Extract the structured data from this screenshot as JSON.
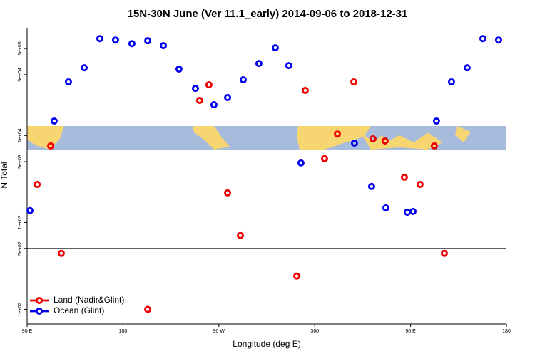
{
  "chart_data": {
    "type": "scatter",
    "title": "15N-30N June (Ver 11.1_early)   2014-09-06 to 2018-12-31",
    "x_label": "Longitude (deg E)",
    "y_label": "N Total",
    "log_y": true,
    "xlim": [
      90,
      540
    ],
    "ylim": [
      68,
      170000
    ],
    "xticks": [
      {
        "value": 90,
        "label": "90 E"
      },
      180,
      {
        "value": 270,
        "label": "90 W"
      },
      360,
      {
        "value": 450,
        "label": "90 E"
      },
      {
        "value": 540,
        "label": "180"
      }
    ],
    "yticks": [
      {
        "value": 100,
        "label": "1e+02"
      },
      {
        "value": 500,
        "label": "5e+02"
      },
      {
        "value": 1000,
        "label": "1e+03"
      },
      {
        "value": 5000,
        "label": "5e+03"
      },
      {
        "value": 10000,
        "label": "1e+04"
      },
      {
        "value": 50000,
        "label": "5e+04"
      },
      {
        "value": 100000,
        "label": "1e+05"
      }
    ],
    "reference_line": 500,
    "legend": "bottom-left",
    "series": [
      {
        "name": "Land (Nadir&Glint)",
        "color": "#ee0000",
        "x": [
          99.4,
          112.1,
          122.1,
          203.2,
          252,
          260.7,
          278.2,
          290.2,
          343.1,
          351.1,
          369.2,
          381.3,
          396.7,
          414.7,
          426.1,
          444.2,
          458.9,
          472.3,
          481.7
        ],
        "values": [
          2740,
          7590,
          442,
          100,
          25300,
          38300,
          2190,
          708,
          242,
          33000,
          5410,
          10400,
          41300,
          9160,
          8650,
          3310,
          2740,
          7590,
          442
        ]
      },
      {
        "name": "Ocean (Glint)",
        "color": "#0000ee",
        "x": [
          92.7,
          115.4,
          128.8,
          143.6,
          158.3,
          173,
          188.4,
          203.2,
          217.9,
          232.6,
          248,
          265.4,
          278.2,
          292.9,
          307.6,
          323,
          335.7,
          347.1,
          397.3,
          413.4,
          426.8,
          446.9,
          452.3,
          474.3,
          488.4,
          503.1,
          517.9,
          532.6
        ],
        "values": [
          1370,
          14650,
          41300,
          60100,
          130000,
          125000,
          114000,
          123000,
          108000,
          58000,
          34800,
          22600,
          27300,
          43700,
          67300,
          102000,
          63700,
          4830,
          8180,
          2590,
          1470,
          1310,
          1340,
          14650,
          41300,
          60100,
          130000,
          125000
        ]
      }
    ]
  }
}
